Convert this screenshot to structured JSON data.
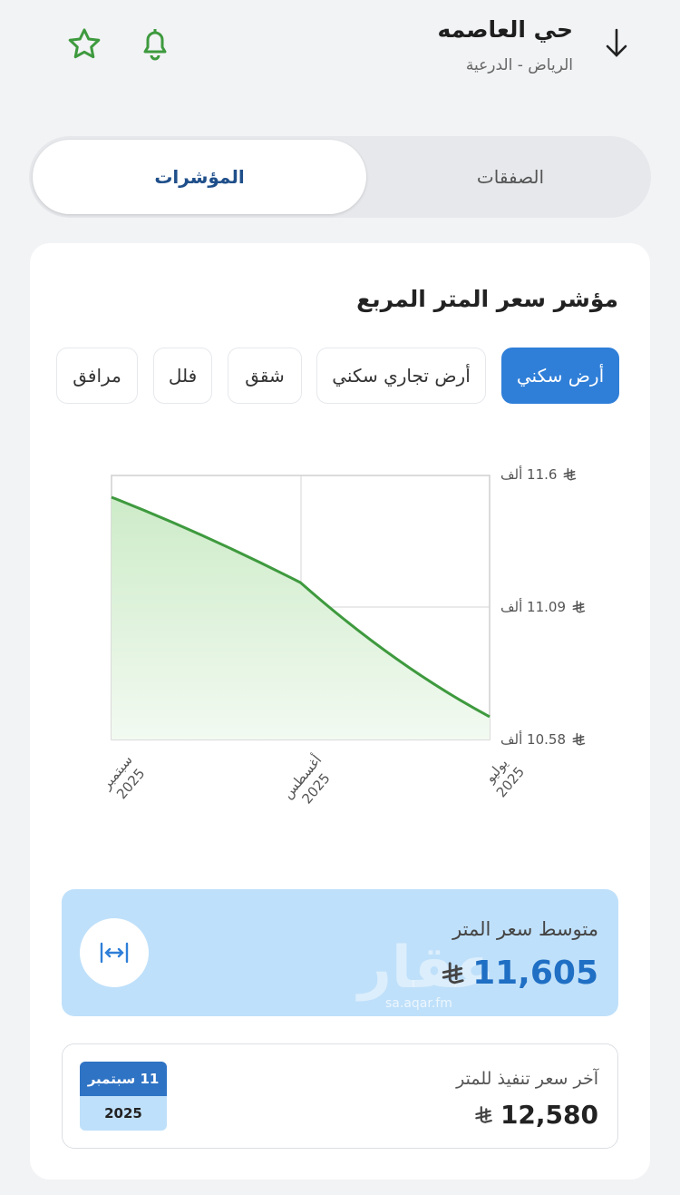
{
  "header": {
    "title": "حي العاصمه",
    "subtitle": "الرياض - الدرعية",
    "icons": [
      "arrow-down-icon",
      "bell-icon",
      "star-icon"
    ]
  },
  "tabs": [
    {
      "label": "الصفقات",
      "active": false
    },
    {
      "label": "المؤشرات",
      "active": true
    }
  ],
  "card": {
    "title": "مؤشر سعر المتر المربع",
    "chips": [
      {
        "label": "أرض سكني",
        "active": true
      },
      {
        "label": "أرض تجاري سكني",
        "active": false
      },
      {
        "label": "شقق",
        "active": false
      },
      {
        "label": "فلل",
        "active": false
      },
      {
        "label": "مرافق",
        "active": false
      }
    ]
  },
  "chart_data": {
    "type": "area",
    "x": [
      "يوليو 2025",
      "أغسطس 2025",
      "سبتمبر 2025"
    ],
    "x_tick_labels": [
      [
        "يوليو",
        "2025"
      ],
      [
        "أغسطس",
        "2025"
      ],
      [
        "سبتمبر",
        "2025"
      ]
    ],
    "x_direction": "right-to-left",
    "values": [
      10.668,
      11.186,
      11.516
    ],
    "y_unit": "ألف",
    "ylim": [
      10.58,
      11.6
    ],
    "y_ticks": [
      "11.6 ألف",
      "11.09 ألف",
      "10.58 ألف"
    ],
    "grid": true,
    "color": "#3e9a3e",
    "fill": "#d9f0d6"
  },
  "average": {
    "label": "متوسط سعر المتر",
    "value": "11,605",
    "icon": "expand-horizontal-icon",
    "watermark": "عقار",
    "watermark_url": "sa.aqar.fm"
  },
  "last": {
    "label": "آخر سعر تنفيذ للمتر",
    "value": "12,580",
    "date_day": "11 سبتمبر",
    "date_year": "2025"
  },
  "colors": {
    "accent": "#2f7fd8",
    "navy": "#1f4f8a",
    "green": "#3e9a3e",
    "avg_bg": "#bfe0fa"
  }
}
